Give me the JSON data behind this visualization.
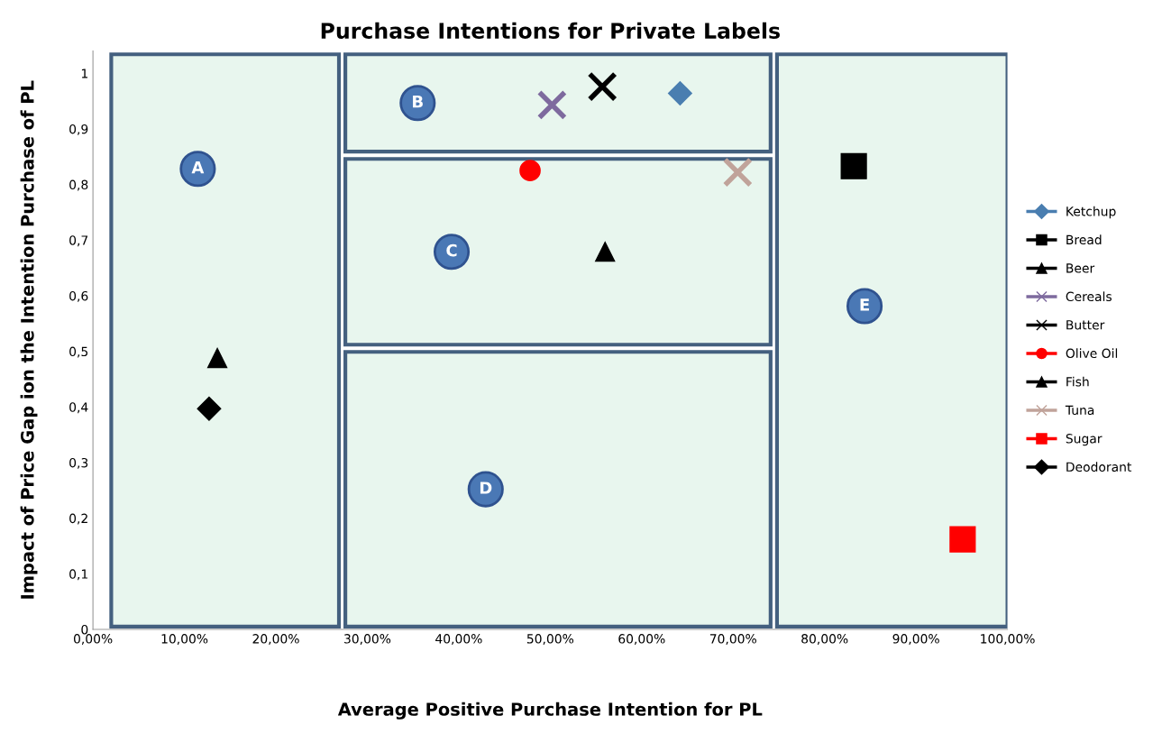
{
  "chart_data": {
    "type": "scatter",
    "title": "Purchase Intentions for Private Labels",
    "xlabel": "Average Positive Purchase Intention for PL",
    "ylabel": "Impact of Price Gap ion the Intention Purchase of PL",
    "xlim": [
      0,
      1.0
    ],
    "ylim": [
      0,
      1.04
    ],
    "xticks": [
      {
        "value": 0,
        "label": "0,00%"
      },
      {
        "value": 0.1,
        "label": "10,00%"
      },
      {
        "value": 0.2,
        "label": "20,00%"
      },
      {
        "value": 0.3,
        "label": "30,00%"
      },
      {
        "value": 0.4,
        "label": "40,00%"
      },
      {
        "value": 0.5,
        "label": "50,00%"
      },
      {
        "value": 0.6,
        "label": "60,00%"
      },
      {
        "value": 0.7,
        "label": "70,00%"
      },
      {
        "value": 0.8,
        "label": "80,00%"
      },
      {
        "value": 0.9,
        "label": "90,00%"
      },
      {
        "value": 1.0,
        "label": "100,00%"
      }
    ],
    "yticks": [
      0,
      {
        "value": 0.1,
        "label": "0,1"
      },
      {
        "value": 0.2,
        "label": "0,2"
      },
      {
        "value": 0.3,
        "label": "0,3"
      },
      {
        "value": 0.4,
        "label": "0,4"
      },
      {
        "value": 0.5,
        "label": "0,5"
      },
      {
        "value": 0.6,
        "label": "0,6"
      },
      {
        "value": 0.7,
        "label": "0,7"
      },
      {
        "value": 0.8,
        "label": "0,8"
      },
      {
        "value": 0.9,
        "label": "0,9"
      },
      1
    ],
    "grid": false,
    "legend": "right",
    "bands": [
      {
        "axis": "x",
        "from": 0.02,
        "to": 0.269,
        "label": "A",
        "color": "#e8f6ee"
      },
      {
        "axis": "x",
        "from": 0.748,
        "to": 1.0,
        "label": "E",
        "color": "#e8f6ee"
      },
      {
        "axis": "y",
        "from": 0.859,
        "to": 1.034,
        "label": "B",
        "color": "#e8f6ee"
      },
      {
        "axis": "y",
        "from": 0.512,
        "to": 0.846,
        "label": "C",
        "color": "#e8f6ee"
      },
      {
        "axis": "y",
        "from": 0.005,
        "to": 0.499,
        "label": "D",
        "color": "#e8f6ee"
      }
    ],
    "series": [
      {
        "name": "Ketchup",
        "color": "#4a7eb0",
        "marker": "diamond",
        "x": [
          0.642
        ],
        "values": [
          0.964
        ]
      },
      {
        "name": "Bread",
        "color": "#000000",
        "marker": "square",
        "x": [
          0.832
        ],
        "values": [
          0.833
        ]
      },
      {
        "name": "Beer",
        "color": "#000000",
        "marker": "triangle",
        "x": [
          0.136
        ],
        "values": [
          0.488
        ]
      },
      {
        "name": "Cereals",
        "color": "#7e6a9e",
        "marker": "cross",
        "x": [
          0.502
        ],
        "values": [
          0.943
        ]
      },
      {
        "name": "Butter",
        "color": "#000000",
        "marker": "cross",
        "x": [
          0.557
        ],
        "values": [
          0.976
        ]
      },
      {
        "name": "Olive Oil",
        "color": "#ff0000",
        "marker": "circle",
        "x": [
          0.478
        ],
        "values": [
          0.825
        ]
      },
      {
        "name": "Fish",
        "color": "#000000",
        "marker": "triangle",
        "x": [
          0.56
        ],
        "values": [
          0.679
        ]
      },
      {
        "name": "Tuna",
        "color": "#c0a39a",
        "marker": "cross",
        "x": [
          0.705
        ],
        "values": [
          0.822
        ]
      },
      {
        "name": "Sugar",
        "color": "#ff0000",
        "marker": "square",
        "x": [
          0.951
        ],
        "values": [
          0.162
        ]
      },
      {
        "name": "Deodorant",
        "color": "#000000",
        "marker": "diamond",
        "x": [
          0.127
        ],
        "values": [
          0.397
        ]
      }
    ]
  }
}
